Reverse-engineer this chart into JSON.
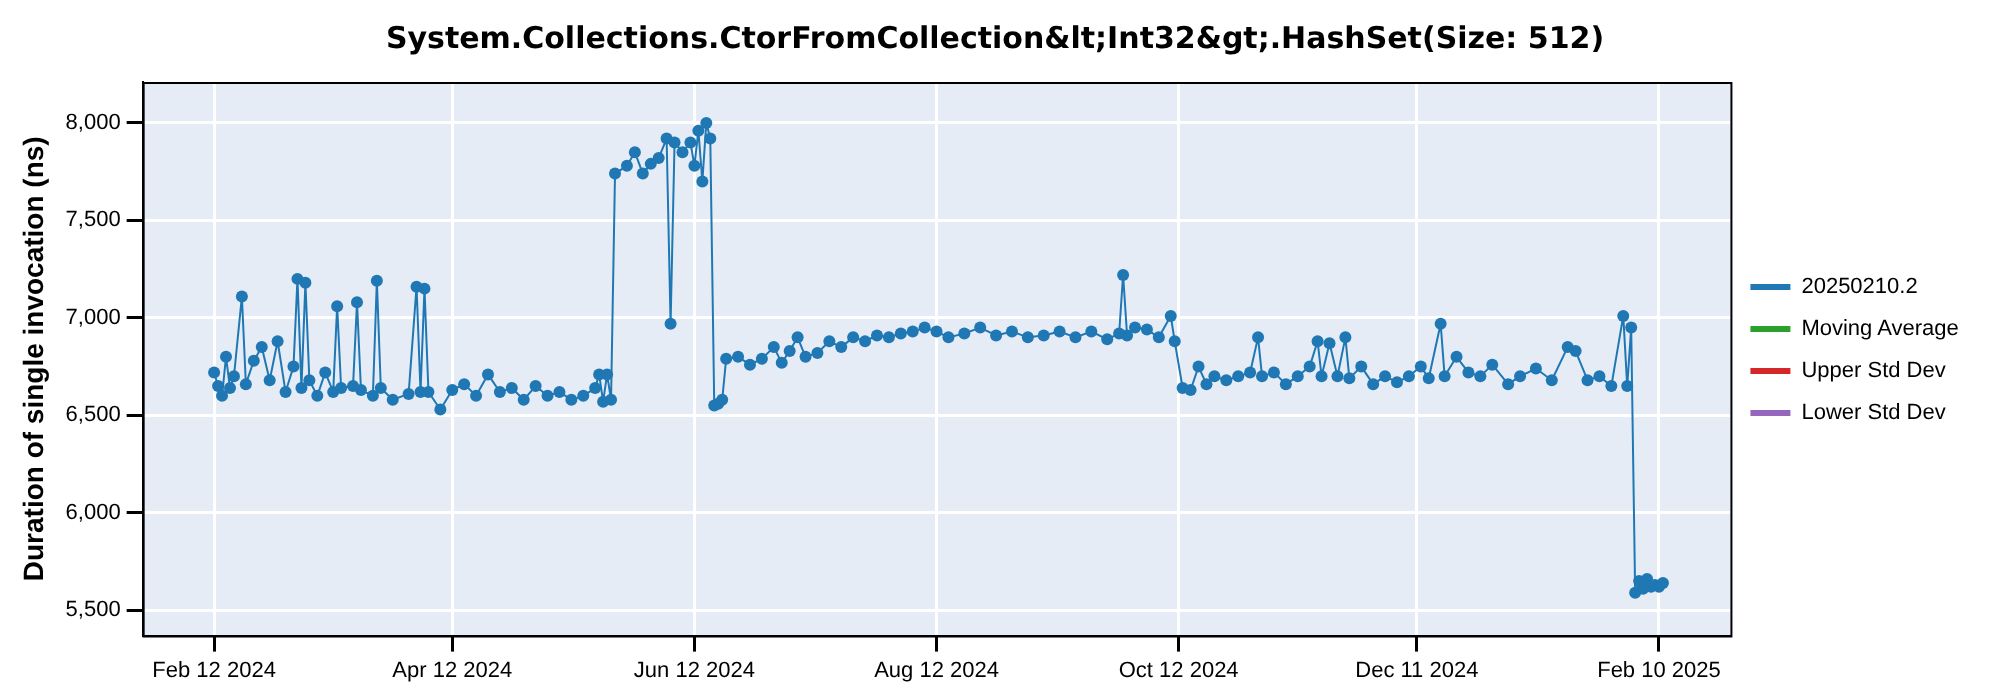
{
  "chart_data": {
    "type": "line",
    "title": "System.Collections.CtorFromCollection&lt;Int32&gt;.HashSet(Size: 512)",
    "ylabel": "Duration of single invocation (ns)",
    "xlim": [
      "2024-01-25",
      "2025-02-28"
    ],
    "xticks": [
      {
        "value": "2024-02-12",
        "label": "Feb 12 2024"
      },
      {
        "value": "2024-04-12",
        "label": "Apr 12 2024"
      },
      {
        "value": "2024-06-12",
        "label": "Jun 12 2024"
      },
      {
        "value": "2024-08-12",
        "label": "Aug 12 2024"
      },
      {
        "value": "2024-10-12",
        "label": "Oct 12 2024"
      },
      {
        "value": "2024-12-11",
        "label": "Dec 11 2024"
      },
      {
        "value": "2025-02-10",
        "label": "Feb 10 2025"
      }
    ],
    "ylim": [
      5370,
      8210
    ],
    "yticks": [
      {
        "value": 5500,
        "label": "5,500"
      },
      {
        "value": 6000,
        "label": "6,000"
      },
      {
        "value": 6500,
        "label": "6,500"
      },
      {
        "value": 7000,
        "label": "7,000"
      },
      {
        "value": 7500,
        "label": "7,500"
      },
      {
        "value": 8000,
        "label": "8,000"
      }
    ],
    "grid": true,
    "legend": "right",
    "marker": "circle",
    "line_style": "solid",
    "series": [
      {
        "name": "20250210.2",
        "color": "#1f77b4",
        "x": [
          "2024-02-12",
          "2024-02-13",
          "2024-02-14",
          "2024-02-15",
          "2024-02-16",
          "2024-02-17",
          "2024-02-19",
          "2024-02-20",
          "2024-02-22",
          "2024-02-24",
          "2024-02-26",
          "2024-02-28",
          "2024-03-01",
          "2024-03-03",
          "2024-03-04",
          "2024-03-05",
          "2024-03-06",
          "2024-03-07",
          "2024-03-09",
          "2024-03-11",
          "2024-03-13",
          "2024-03-14",
          "2024-03-15",
          "2024-03-18",
          "2024-03-19",
          "2024-03-20",
          "2024-03-23",
          "2024-03-24",
          "2024-03-25",
          "2024-03-28",
          "2024-04-01",
          "2024-04-03",
          "2024-04-04",
          "2024-04-05",
          "2024-04-06",
          "2024-04-09",
          "2024-04-12",
          "2024-04-15",
          "2024-04-18",
          "2024-04-21",
          "2024-04-24",
          "2024-04-27",
          "2024-04-30",
          "2024-05-03",
          "2024-05-06",
          "2024-05-09",
          "2024-05-12",
          "2024-05-15",
          "2024-05-18",
          "2024-05-19",
          "2024-05-20",
          "2024-05-21",
          "2024-05-22",
          "2024-05-23",
          "2024-05-26",
          "2024-05-28",
          "2024-05-30",
          "2024-06-01",
          "2024-06-03",
          "2024-06-05",
          "2024-06-06",
          "2024-06-07",
          "2024-06-09",
          "2024-06-11",
          "2024-06-12",
          "2024-06-13",
          "2024-06-14",
          "2024-06-15",
          "2024-06-16",
          "2024-06-17",
          "2024-06-18",
          "2024-06-19",
          "2024-06-20",
          "2024-06-23",
          "2024-06-26",
          "2024-06-29",
          "2024-07-02",
          "2024-07-04",
          "2024-07-06",
          "2024-07-08",
          "2024-07-10",
          "2024-07-13",
          "2024-07-16",
          "2024-07-19",
          "2024-07-22",
          "2024-07-25",
          "2024-07-28",
          "2024-07-31",
          "2024-08-03",
          "2024-08-06",
          "2024-08-09",
          "2024-08-12",
          "2024-08-15",
          "2024-08-19",
          "2024-08-23",
          "2024-08-27",
          "2024-08-31",
          "2024-09-04",
          "2024-09-08",
          "2024-09-12",
          "2024-09-16",
          "2024-09-20",
          "2024-09-24",
          "2024-09-27",
          "2024-09-28",
          "2024-09-29",
          "2024-10-01",
          "2024-10-04",
          "2024-10-07",
          "2024-10-10",
          "2024-10-11",
          "2024-10-13",
          "2024-10-15",
          "2024-10-17",
          "2024-10-19",
          "2024-10-21",
          "2024-10-24",
          "2024-10-27",
          "2024-10-30",
          "2024-11-01",
          "2024-11-02",
          "2024-11-05",
          "2024-11-08",
          "2024-11-11",
          "2024-11-14",
          "2024-11-16",
          "2024-11-17",
          "2024-11-19",
          "2024-11-21",
          "2024-11-23",
          "2024-11-24",
          "2024-11-27",
          "2024-11-30",
          "2024-12-03",
          "2024-12-06",
          "2024-12-09",
          "2024-12-12",
          "2024-12-14",
          "2024-12-17",
          "2024-12-18",
          "2024-12-21",
          "2024-12-24",
          "2024-12-27",
          "2024-12-30",
          "2025-01-03",
          "2025-01-06",
          "2025-01-10",
          "2025-01-14",
          "2025-01-18",
          "2025-01-20",
          "2025-01-23",
          "2025-01-26",
          "2025-01-29",
          "2025-02-01",
          "2025-02-02",
          "2025-02-03",
          "2025-02-04",
          "2025-02-05",
          "2025-02-06",
          "2025-02-07",
          "2025-02-08",
          "2025-02-09",
          "2025-02-10",
          "2025-02-11"
        ],
        "values": [
          6720,
          6650,
          6600,
          6800,
          6640,
          6700,
          7110,
          6660,
          6780,
          6850,
          6680,
          6880,
          6620,
          6750,
          7200,
          6640,
          7180,
          6680,
          6600,
          6720,
          6620,
          7060,
          6640,
          6650,
          7080,
          6630,
          6600,
          7190,
          6640,
          6580,
          6610,
          7160,
          6620,
          7150,
          6620,
          6530,
          6630,
          6660,
          6600,
          6710,
          6620,
          6640,
          6580,
          6650,
          6600,
          6620,
          6580,
          6600,
          6640,
          6710,
          6570,
          6710,
          6580,
          7740,
          7780,
          7850,
          7740,
          7790,
          7820,
          7920,
          6970,
          7900,
          7850,
          7900,
          7780,
          7960,
          7700,
          8000,
          7920,
          6550,
          6560,
          6580,
          6790,
          6800,
          6760,
          6790,
          6850,
          6770,
          6830,
          6900,
          6800,
          6820,
          6880,
          6850,
          6900,
          6880,
          6910,
          6900,
          6920,
          6930,
          6950,
          6930,
          6900,
          6920,
          6950,
          6910,
          6930,
          6900,
          6910,
          6930,
          6900,
          6930,
          6890,
          6920,
          7220,
          6910,
          6950,
          6940,
          6900,
          7010,
          6880,
          6640,
          6630,
          6750,
          6660,
          6700,
          6680,
          6700,
          6720,
          6900,
          6700,
          6720,
          6660,
          6700,
          6750,
          6880,
          6700,
          6870,
          6700,
          6900,
          6690,
          6750,
          6660,
          6700,
          6670,
          6700,
          6750,
          6690,
          6970,
          6700,
          6800,
          6720,
          6700,
          6760,
          6660,
          6700,
          6740,
          6680,
          6850,
          6830,
          6680,
          6700,
          6650,
          7010,
          6650,
          6950,
          5590,
          5650,
          5610,
          5660,
          5620,
          5630,
          5620,
          5640
        ]
      },
      {
        "name": "Moving Average",
        "color": "#2ca02c"
      },
      {
        "name": "Upper Std Dev",
        "color": "#d62728"
      },
      {
        "name": "Lower Std Dev",
        "color": "#9467bd"
      }
    ]
  }
}
